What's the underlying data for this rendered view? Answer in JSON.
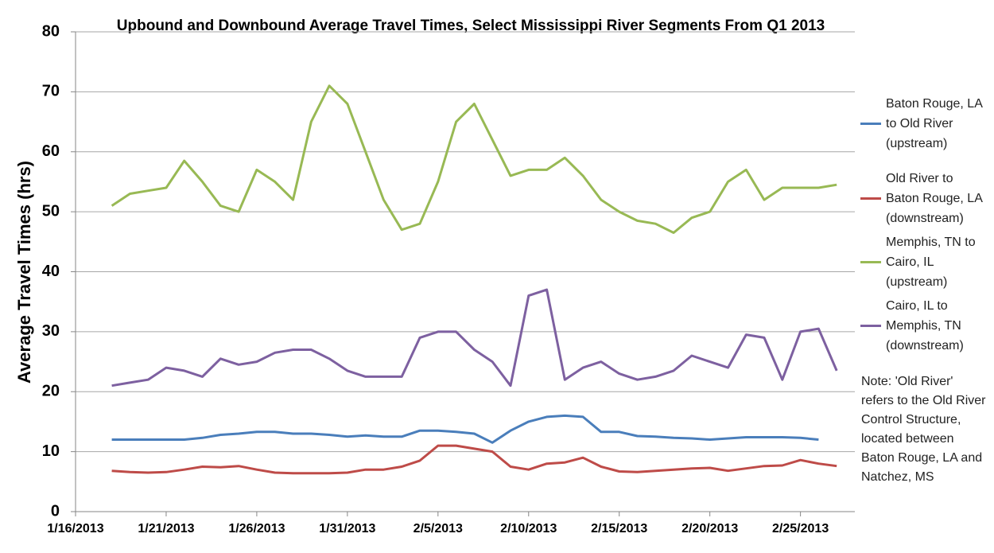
{
  "chart_data": {
    "type": "line",
    "title": "Upbound and Downbound Average Travel Times, Select Mississippi River Segments From Q1 2013",
    "y_label": "Average Travel Times (hrs)",
    "note": "Note: 'Old River' refers to the Old River Control Structure, located between Baton Rouge, LA and Natchez, MS",
    "x": [
      "1/18/2013",
      "1/19/2013",
      "1/20/2013",
      "1/21/2013",
      "1/22/2013",
      "1/23/2013",
      "1/24/2013",
      "1/25/2013",
      "1/26/2013",
      "1/27/2013",
      "1/28/2013",
      "1/29/2013",
      "1/30/2013",
      "1/31/2013",
      "2/1/2013",
      "2/2/2013",
      "2/3/2013",
      "2/4/2013",
      "2/5/2013",
      "2/6/2013",
      "2/7/2013",
      "2/8/2013",
      "2/9/2013",
      "2/10/2013",
      "2/11/2013",
      "2/12/2013",
      "2/13/2013",
      "2/14/2013",
      "2/15/2013",
      "2/16/2013",
      "2/17/2013",
      "2/18/2013",
      "2/19/2013",
      "2/20/2013",
      "2/21/2013",
      "2/22/2013",
      "2/23/2013",
      "2/24/2013",
      "2/25/2013",
      "2/26/2013",
      "2/27/2013",
      "2/28/2013"
    ],
    "xlim": [
      "1/16/2013",
      "2/28/2013"
    ],
    "xticks": [
      "1/16/2013",
      "1/21/2013",
      "1/26/2013",
      "1/31/2013",
      "2/5/2013",
      "2/10/2013",
      "2/15/2013",
      "2/20/2013",
      "2/25/2013"
    ],
    "ylim": [
      0,
      80
    ],
    "yticks": [
      0,
      10,
      20,
      30,
      40,
      50,
      60,
      70,
      80
    ],
    "grid": true,
    "series": [
      {
        "name": "Baton Rouge, LA to Old River (upstream)",
        "color": "#4a7ebb",
        "values": [
          12,
          12,
          12,
          12,
          12,
          12.3,
          12.8,
          13,
          13.3,
          13.3,
          13,
          13,
          12.8,
          12.5,
          12.7,
          12.5,
          12.5,
          13.5,
          13.5,
          13.3,
          13,
          11.5,
          13.5,
          15,
          15.8,
          16,
          15.8,
          13.3,
          13.3,
          12.6,
          12.5,
          12.3,
          12.2,
          12,
          12.2,
          12.4,
          12.4,
          12.4,
          12.3,
          12,
          null,
          null
        ]
      },
      {
        "name": "Old River to Baton Rouge, LA (downstream)",
        "color": "#be4b48",
        "values": [
          6.8,
          6.6,
          6.5,
          6.6,
          7,
          7.5,
          7.4,
          7.6,
          7,
          6.5,
          6.4,
          6.4,
          6.4,
          6.5,
          7,
          7,
          7.5,
          8.5,
          11,
          11,
          10.5,
          10,
          7.5,
          7,
          8,
          8.2,
          9,
          7.5,
          6.7,
          6.6,
          6.8,
          7,
          7.2,
          7.3,
          6.8,
          7.2,
          7.6,
          7.7,
          8.6,
          8,
          7.6,
          null
        ]
      },
      {
        "name": "Memphis, TN to Cairo, IL (upstream)",
        "color": "#98b954",
        "values": [
          51,
          53,
          53.5,
          54,
          58.5,
          55,
          51,
          50,
          57,
          55,
          52,
          65,
          71,
          68,
          60,
          52,
          47,
          48,
          55,
          65,
          68,
          62,
          56,
          57,
          57,
          59,
          56,
          52,
          50,
          48.5,
          48,
          46.5,
          49,
          50,
          55,
          57,
          52,
          54,
          54,
          54,
          54.5,
          null
        ]
      },
      {
        "name": "Cairo, IL to Memphis, TN (downstream)",
        "color": "#7d60a0",
        "values": [
          21,
          21.5,
          22,
          24,
          23.5,
          22.5,
          25.5,
          24.5,
          25,
          26.5,
          27,
          27,
          25.5,
          23.5,
          22.5,
          22.5,
          22.5,
          29,
          30,
          30,
          27,
          25,
          21,
          36,
          37,
          22,
          24,
          25,
          23,
          22,
          22.5,
          23.5,
          26,
          25,
          24,
          29.5,
          29,
          22,
          30,
          30.5,
          23.5,
          null
        ]
      }
    ]
  }
}
